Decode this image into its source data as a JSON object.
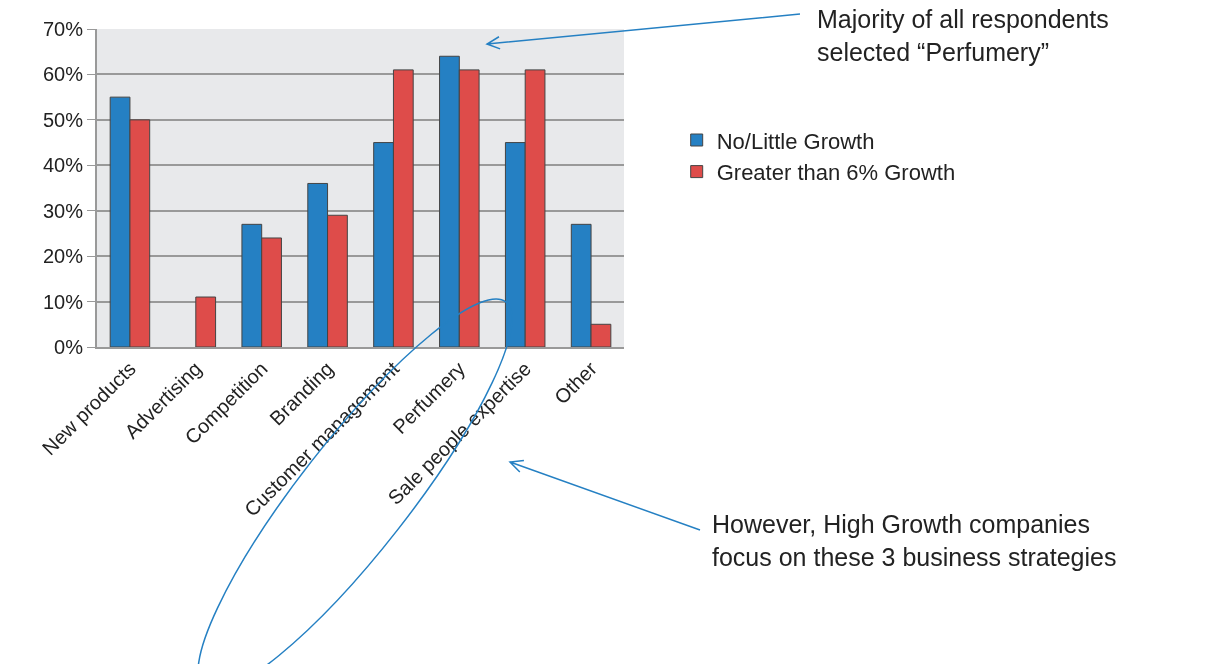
{
  "chart_data": {
    "type": "bar",
    "categories": [
      "New products",
      "Advertising",
      "Competition",
      "Branding",
      "Customer management",
      "Perfumery",
      "Sale people expertise",
      "Other"
    ],
    "series": [
      {
        "name": "No/Little Growth",
        "color": "#2580c3",
        "values": [
          55,
          null,
          27,
          36,
          45,
          64,
          45,
          27
        ]
      },
      {
        "name": "Greater than 6% Growth",
        "color": "#de4c4a",
        "values": [
          50,
          11,
          24,
          29,
          61,
          61,
          61,
          5
        ]
      }
    ],
    "ylim": [
      0,
      70
    ],
    "yticks": [
      {
        "value": 0,
        "label": "0%"
      },
      {
        "value": 10,
        "label": "10%"
      },
      {
        "value": 20,
        "label": "20%"
      },
      {
        "value": 30,
        "label": "30%"
      },
      {
        "value": 40,
        "label": "40%"
      },
      {
        "value": 50,
        "label": "50%"
      },
      {
        "value": 60,
        "label": "60%"
      },
      {
        "value": 70,
        "label": "70%"
      }
    ],
    "grid": "y",
    "legend": "right",
    "annotations": [
      "Majority of all respondents selected “Perfumery”",
      "However, High Growth companies focus on these 3 business strategies"
    ]
  }
}
